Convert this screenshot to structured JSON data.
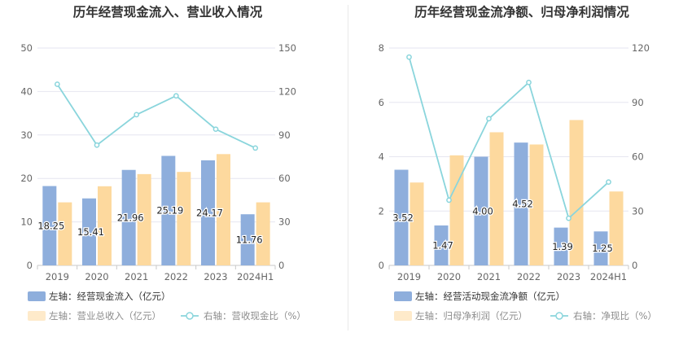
{
  "colors": {
    "bar1": "#8EAEDC",
    "bar2": "#FDD99E",
    "line": "#8AD5DC",
    "grid": "#E6E6F0",
    "axis": "#C9C9C9",
    "legend_on": "#333333",
    "legend_off": "#8C8C8C"
  },
  "chart_data": [
    {
      "type": "bar",
      "title": "历年经营现金流入、营业收入情况",
      "categories": [
        "2019",
        "2020",
        "2021",
        "2022",
        "2023",
        "2024H1"
      ],
      "left_axis": {
        "min": 0,
        "max": 50,
        "ticks": [
          "0",
          "10",
          "20",
          "30",
          "40",
          "50"
        ]
      },
      "right_axis": {
        "min": 0,
        "max": 150,
        "ticks": [
          "0",
          "30",
          "60",
          "90",
          "120",
          "150"
        ]
      },
      "series": [
        {
          "name": "左轴：经营现金流入（亿元）",
          "kind": "bar",
          "axis": "left",
          "values": [
            18.25,
            15.41,
            21.96,
            25.19,
            24.17,
            11.76
          ],
          "labels": [
            "18.25",
            "15.41",
            "21.96",
            "25.19",
            "24.17",
            "11.76"
          ]
        },
        {
          "name": "左轴：营业总收入（亿元）",
          "kind": "bar",
          "axis": "left",
          "values": [
            14.5,
            18.2,
            21.0,
            21.5,
            25.6,
            14.5
          ]
        },
        {
          "name": "右轴：营收现金比（%）",
          "kind": "line",
          "axis": "right",
          "values": [
            125,
            83,
            104,
            117,
            94,
            81
          ]
        }
      ]
    },
    {
      "type": "bar",
      "title": "历年经营现金流净额、归母净利润情况",
      "categories": [
        "2019",
        "2020",
        "2021",
        "2022",
        "2023",
        "2024H1"
      ],
      "left_axis": {
        "min": 0,
        "max": 8,
        "ticks": [
          "0",
          "2",
          "4",
          "6",
          "8"
        ]
      },
      "right_axis": {
        "min": 0,
        "max": 120,
        "ticks": [
          "0",
          "30",
          "60",
          "90",
          "120"
        ]
      },
      "series": [
        {
          "name": "左轴：经营活动现金流净额（亿元）",
          "kind": "bar",
          "axis": "left",
          "values": [
            3.52,
            1.47,
            4.0,
            4.52,
            1.39,
            1.25
          ],
          "labels": [
            "3.52",
            "1.47",
            "4.00",
            "4.52",
            "1.39",
            "1.25"
          ]
        },
        {
          "name": "左轴：归母净利润（亿元）",
          "kind": "bar",
          "axis": "left",
          "values": [
            3.05,
            4.05,
            4.9,
            4.45,
            5.35,
            2.72
          ]
        },
        {
          "name": "右轴：净现比（%）",
          "kind": "line",
          "axis": "right",
          "values": [
            115,
            36,
            81,
            101,
            26,
            46
          ]
        }
      ]
    }
  ]
}
